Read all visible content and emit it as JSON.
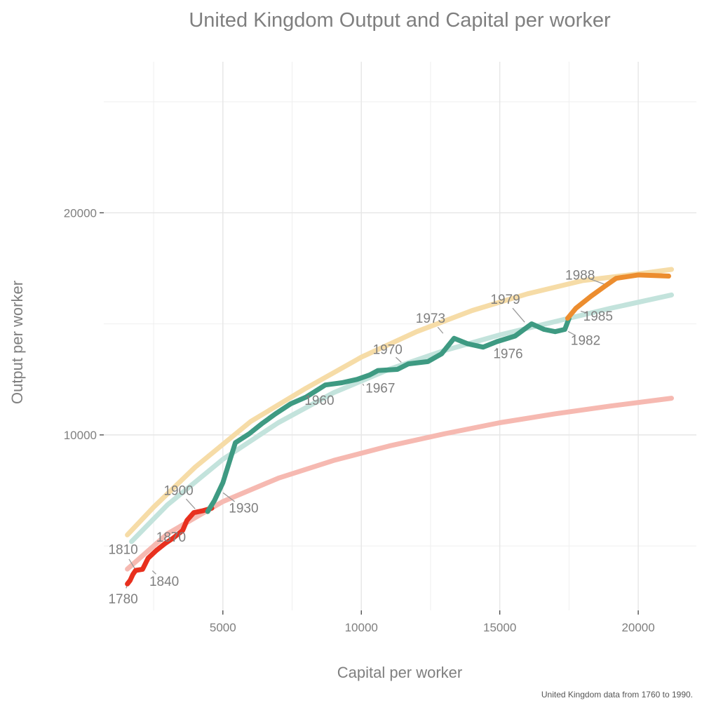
{
  "chart_data": {
    "type": "line",
    "title": "United Kingdom Output and Capital per worker",
    "xlabel": "Capital per worker",
    "ylabel": "Output per worker",
    "caption": "United Kingdom data from 1760 to 1990.",
    "xlim": [
      700,
      22100
    ],
    "ylim": [
      2100,
      26800
    ],
    "x_ticks": [
      5000,
      10000,
      15000,
      20000
    ],
    "y_ticks": [
      10000,
      20000
    ],
    "grid": true,
    "legend": "none",
    "series": [
      {
        "color": "#e8301e",
        "points": [
          [
            1550,
            3290
          ],
          [
            1650,
            3450
          ],
          [
            1750,
            3720
          ],
          [
            1850,
            3900
          ],
          [
            2100,
            3950
          ],
          [
            2300,
            4450
          ],
          [
            2600,
            4800
          ],
          [
            2900,
            5100
          ],
          [
            3200,
            5350
          ],
          [
            3550,
            5700
          ],
          [
            3700,
            6150
          ],
          [
            3950,
            6500
          ],
          [
            4250,
            6580
          ],
          [
            4600,
            6700
          ]
        ]
      },
      {
        "color": "#3e9a82",
        "points": [
          [
            4450,
            6550
          ],
          [
            4700,
            7050
          ],
          [
            5000,
            7850
          ],
          [
            5450,
            9650
          ],
          [
            5950,
            10050
          ],
          [
            6400,
            10500
          ],
          [
            6900,
            10950
          ],
          [
            7450,
            11400
          ],
          [
            8000,
            11700
          ],
          [
            8700,
            12250
          ],
          [
            9300,
            12350
          ],
          [
            9850,
            12500
          ],
          [
            10300,
            12700
          ],
          [
            10600,
            12900
          ],
          [
            11300,
            12950
          ],
          [
            11700,
            13200
          ],
          [
            12400,
            13300
          ],
          [
            12900,
            13650
          ],
          [
            13350,
            14350
          ],
          [
            13850,
            14100
          ],
          [
            14400,
            13950
          ],
          [
            14900,
            14200
          ],
          [
            15550,
            14450
          ],
          [
            16150,
            15000
          ],
          [
            16600,
            14750
          ],
          [
            17000,
            14650
          ],
          [
            17350,
            14750
          ],
          [
            17500,
            15250
          ]
        ]
      },
      {
        "color": "#ec8d2f",
        "points": [
          [
            17450,
            15250
          ],
          [
            17750,
            15700
          ],
          [
            18300,
            16250
          ],
          [
            18800,
            16700
          ],
          [
            19200,
            17050
          ],
          [
            20000,
            17200
          ],
          [
            21100,
            17150
          ]
        ]
      }
    ],
    "reference_curves": [
      {
        "color": "#f6dca7",
        "points": [
          [
            1550,
            5500
          ],
          [
            2500,
            6750
          ],
          [
            4000,
            8550
          ],
          [
            6000,
            10600
          ],
          [
            8000,
            12100
          ],
          [
            10000,
            13500
          ],
          [
            12000,
            14650
          ],
          [
            14000,
            15600
          ],
          [
            16000,
            16350
          ],
          [
            18000,
            16950
          ],
          [
            20000,
            17250
          ],
          [
            21200,
            17450
          ]
        ]
      },
      {
        "color": "#c3e3dc",
        "points": [
          [
            1700,
            5200
          ],
          [
            3000,
            6850
          ],
          [
            5000,
            8900
          ],
          [
            7000,
            10550
          ],
          [
            9000,
            11900
          ],
          [
            11000,
            12950
          ],
          [
            13000,
            13800
          ],
          [
            15000,
            14500
          ],
          [
            17000,
            15100
          ],
          [
            19000,
            15700
          ],
          [
            21200,
            16300
          ]
        ]
      },
      {
        "color": "#f6b9b1",
        "points": [
          [
            1550,
            3960
          ],
          [
            3000,
            5550
          ],
          [
            5000,
            7000
          ],
          [
            7000,
            8050
          ],
          [
            9000,
            8850
          ],
          [
            11000,
            9500
          ],
          [
            13000,
            10050
          ],
          [
            15000,
            10550
          ],
          [
            17000,
            10950
          ],
          [
            19000,
            11300
          ],
          [
            21200,
            11650
          ]
        ]
      }
    ],
    "annotations": [
      {
        "label": "1780",
        "x": 1550,
        "y": 3290,
        "lx": 1400,
        "ly": 2420,
        "anchor": "middle"
      },
      {
        "label": "1810",
        "x": 1950,
        "y": 3720,
        "lx": 1400,
        "ly": 4650,
        "anchor": "middle"
      },
      {
        "label": "1840",
        "x": 2400,
        "y": 3950,
        "lx": 2880,
        "ly": 3200,
        "anchor": "middle"
      },
      {
        "label": "1870",
        "x": 3400,
        "y": 5600,
        "lx": 3130,
        "ly": 5200,
        "anchor": "middle"
      },
      {
        "label": "1900",
        "x": 4050,
        "y": 6600,
        "lx": 3400,
        "ly": 7300,
        "anchor": "middle"
      },
      {
        "label": "1930",
        "x": 4950,
        "y": 7450,
        "lx": 5750,
        "ly": 6500,
        "anchor": "middle"
      },
      {
        "label": "1960",
        "x": 7500,
        "y": 11450,
        "lx": 7950,
        "ly": 11350,
        "anchor": "start"
      },
      {
        "label": "1967",
        "x": 10050,
        "y": 12300,
        "lx": 10150,
        "ly": 11900,
        "anchor": "start"
      },
      {
        "label": "1970",
        "x": 11500,
        "y": 13200,
        "lx": 10950,
        "ly": 13650,
        "anchor": "middle"
      },
      {
        "label": "1973",
        "x": 13000,
        "y": 14500,
        "lx": 12500,
        "ly": 15050,
        "anchor": "middle"
      },
      {
        "label": "1976",
        "x": 14800,
        "y": 13950,
        "lx": 15300,
        "ly": 13450,
        "anchor": "middle"
      },
      {
        "label": "1979",
        "x": 15950,
        "y": 15000,
        "lx": 15200,
        "ly": 15900,
        "anchor": "middle"
      },
      {
        "label": "1982",
        "x": 17400,
        "y": 14700,
        "lx": 18100,
        "ly": 14050,
        "anchor": "middle"
      },
      {
        "label": "1985",
        "x": 17850,
        "y": 15600,
        "lx": 18550,
        "ly": 15150,
        "anchor": "middle"
      },
      {
        "label": "1988",
        "x": 18850,
        "y": 16750,
        "lx": 17900,
        "ly": 17000,
        "anchor": "middle"
      }
    ]
  }
}
